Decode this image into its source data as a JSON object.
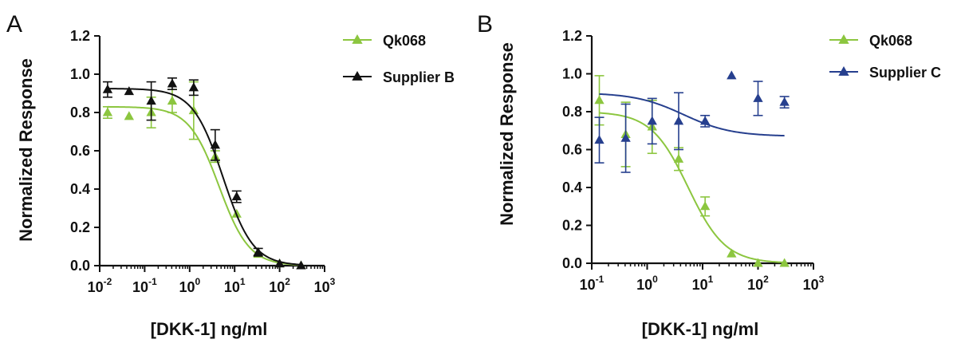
{
  "colors": {
    "qk068": "#8cc63f",
    "supplier_b": "#111111",
    "supplier_c": "#263f8e",
    "axis": "#111111"
  },
  "chart_data": [
    {
      "type": "scatter",
      "panel_label": "A",
      "xlabel": "[DKK-1] ng/ml",
      "ylabel": "Normalized Response",
      "x_scale": "log",
      "xlim": [
        0.01,
        1000
      ],
      "ylim": [
        0,
        1.2
      ],
      "x_ticks": [
        {
          "value": 0.01,
          "base": "10",
          "exp": "-2"
        },
        {
          "value": 0.1,
          "base": "10",
          "exp": "-1"
        },
        {
          "value": 1,
          "base": "10",
          "exp": "0"
        },
        {
          "value": 10,
          "base": "10",
          "exp": "1"
        },
        {
          "value": 100,
          "base": "10",
          "exp": "2"
        },
        {
          "value": 1000,
          "base": "10",
          "exp": "3"
        }
      ],
      "y_ticks": [
        "0.0",
        "0.2",
        "0.4",
        "0.6",
        "0.8",
        "1.0",
        "1.2"
      ],
      "legend_position": "top-right",
      "series": [
        {
          "name": "Qk068",
          "color": "#8cc63f",
          "x": [
            0.015,
            0.045,
            0.14,
            0.41,
            1.23,
            3.7,
            11.1,
            33.3,
            100,
            300
          ],
          "y": [
            0.8,
            0.78,
            0.8,
            0.86,
            0.81,
            0.57,
            0.27,
            0.06,
            0.01,
            0.0
          ],
          "err": [
            0.03,
            0.01,
            0.08,
            0.06,
            0.15,
            0.03,
            0.01,
            0.01,
            0.01,
            0.01
          ],
          "curve": {
            "bottom": 0.0,
            "top": 0.83,
            "ec50": 4.5,
            "hill": 1.3
          }
        },
        {
          "name": "Supplier B",
          "color": "#111111",
          "x": [
            0.015,
            0.045,
            0.14,
            0.41,
            1.23,
            3.7,
            11.1,
            33.3,
            100,
            300
          ],
          "y": [
            0.92,
            0.91,
            0.86,
            0.95,
            0.93,
            0.63,
            0.36,
            0.07,
            0.01,
            0.0
          ],
          "err": [
            0.04,
            0.01,
            0.1,
            0.03,
            0.04,
            0.08,
            0.03,
            0.02,
            0.01,
            0.01
          ],
          "curve": {
            "bottom": 0.0,
            "top": 0.925,
            "ec50": 5.5,
            "hill": 1.3
          }
        }
      ]
    },
    {
      "type": "scatter",
      "panel_label": "B",
      "xlabel": "[DKK-1] ng/ml",
      "ylabel": "Normalized Response",
      "x_scale": "log",
      "xlim": [
        0.1,
        1000
      ],
      "ylim": [
        0,
        1.2
      ],
      "x_ticks": [
        {
          "value": 0.1,
          "base": "10",
          "exp": "-1"
        },
        {
          "value": 1,
          "base": "10",
          "exp": "0"
        },
        {
          "value": 10,
          "base": "10",
          "exp": "1"
        },
        {
          "value": 100,
          "base": "10",
          "exp": "2"
        },
        {
          "value": 1000,
          "base": "10",
          "exp": "3"
        }
      ],
      "y_ticks": [
        "0.0",
        "0.2",
        "0.4",
        "0.6",
        "0.8",
        "1.0",
        "1.2"
      ],
      "legend_position": "top-right",
      "series": [
        {
          "name": "Qk068",
          "color": "#8cc63f",
          "x": [
            0.137,
            0.41,
            1.23,
            3.7,
            11.1,
            33.3,
            100,
            300
          ],
          "y": [
            0.86,
            0.68,
            0.72,
            0.55,
            0.3,
            0.05,
            0.0,
            0.0
          ],
          "err": [
            0.13,
            0.17,
            0.14,
            0.06,
            0.05,
            0.01,
            0.01,
            0.01
          ],
          "curve": {
            "bottom": 0.0,
            "top": 0.8,
            "ec50": 5.5,
            "hill": 1.3
          }
        },
        {
          "name": "Supplier C",
          "color": "#263f8e",
          "x": [
            0.137,
            0.41,
            1.23,
            3.7,
            11.1,
            33.3,
            100,
            300
          ],
          "y": [
            0.65,
            0.66,
            0.75,
            0.75,
            0.75,
            0.99,
            0.87,
            0.85
          ],
          "err": [
            0.12,
            0.18,
            0.12,
            0.15,
            0.03,
            0.01,
            0.09,
            0.03
          ],
          "curve": {
            "bottom": 0.67,
            "top": 0.9,
            "ec50": 4.5,
            "hill": 1.0
          }
        }
      ]
    }
  ]
}
